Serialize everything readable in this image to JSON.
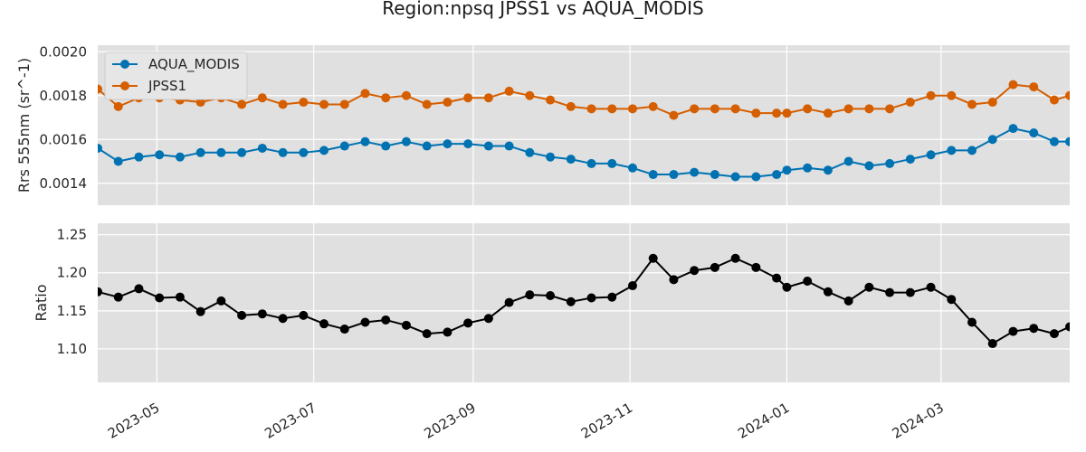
{
  "chart_data": {
    "title": "Region:npsq JPSS1 vs AQUA_MODIS",
    "x_tick_labels": [
      "2023-05",
      "2023-07",
      "2023-09",
      "2023-11",
      "2024-01",
      "2024-03"
    ],
    "x_tick_dates": [
      "2023-05-01",
      "2023-07-01",
      "2023-09-01",
      "2023-11-01",
      "2024-01-01",
      "2024-03-01"
    ],
    "xlim": [
      "2023-04-08",
      "2024-04-20"
    ],
    "x": [
      "2023-04-08",
      "2023-04-16",
      "2023-04-24",
      "2023-05-02",
      "2023-05-10",
      "2023-05-18",
      "2023-05-26",
      "2023-06-03",
      "2023-06-11",
      "2023-06-19",
      "2023-06-27",
      "2023-07-05",
      "2023-07-13",
      "2023-07-21",
      "2023-07-29",
      "2023-08-06",
      "2023-08-14",
      "2023-08-22",
      "2023-08-30",
      "2023-09-07",
      "2023-09-15",
      "2023-09-23",
      "2023-10-01",
      "2023-10-09",
      "2023-10-17",
      "2023-10-25",
      "2023-11-02",
      "2023-11-10",
      "2023-11-18",
      "2023-11-26",
      "2023-12-04",
      "2023-12-12",
      "2023-12-20",
      "2023-12-28",
      "2024-01-01",
      "2024-01-09",
      "2024-01-17",
      "2024-01-25",
      "2024-02-02",
      "2024-02-10",
      "2024-02-18",
      "2024-02-26",
      "2024-03-05",
      "2024-03-13",
      "2024-03-21",
      "2024-03-29",
      "2024-04-06",
      "2024-04-14",
      "2024-04-20"
    ],
    "panels": [
      {
        "type": "line",
        "ylabel": "Rrs 555nm (sr^-1)",
        "ylim": [
          0.0013,
          0.00203
        ],
        "y_ticks": [
          0.0014,
          0.0016,
          0.0018,
          0.002
        ],
        "y_tick_labels": [
          "0.0014",
          "0.0016",
          "0.0018",
          "0.0020"
        ],
        "grid": true,
        "legend": "top-left",
        "series": [
          {
            "name": "AQUA_MODIS",
            "color": "#0072b2",
            "values": [
              0.00156,
              0.0015,
              0.00152,
              0.00153,
              0.00152,
              0.00154,
              0.00154,
              0.00154,
              0.00156,
              0.00154,
              0.00154,
              0.00155,
              0.00157,
              0.00159,
              0.00157,
              0.00159,
              0.00157,
              0.00158,
              0.00158,
              0.00157,
              0.00157,
              0.00154,
              0.00152,
              0.00151,
              0.00149,
              0.00149,
              0.00147,
              0.00144,
              0.00144,
              0.00145,
              0.00144,
              0.00143,
              0.00143,
              0.00144,
              0.00146,
              0.00147,
              0.00146,
              0.0015,
              0.00148,
              0.00149,
              0.00151,
              0.00153,
              0.00155,
              0.00155,
              0.0016,
              0.00165,
              0.00163,
              0.00159,
              0.00159
            ]
          },
          {
            "name": "JPSS1",
            "color": "#d55e00",
            "values": [
              0.00183,
              0.00175,
              0.00179,
              0.00179,
              0.00178,
              0.00177,
              0.00179,
              0.00176,
              0.00179,
              0.00176,
              0.00177,
              0.00176,
              0.00176,
              0.00181,
              0.00179,
              0.0018,
              0.00176,
              0.00177,
              0.00179,
              0.00179,
              0.00182,
              0.0018,
              0.00178,
              0.00175,
              0.00174,
              0.00174,
              0.00174,
              0.00175,
              0.00171,
              0.00174,
              0.00174,
              0.00174,
              0.00172,
              0.00172,
              0.00172,
              0.00174,
              0.00172,
              0.00174,
              0.00174,
              0.00174,
              0.00177,
              0.0018,
              0.0018,
              0.00176,
              0.00177,
              0.00185,
              0.00184,
              0.00178,
              0.0018
            ]
          }
        ]
      },
      {
        "type": "line",
        "ylabel": "Ratio",
        "ylim": [
          1.056,
          1.265
        ],
        "y_ticks": [
          1.1,
          1.15,
          1.2,
          1.25
        ],
        "y_tick_labels": [
          "1.10",
          "1.15",
          "1.20",
          "1.25"
        ],
        "grid": true,
        "series": [
          {
            "color": "#000000",
            "values": [
              1.175,
              1.168,
              1.179,
              1.167,
              1.168,
              1.149,
              1.163,
              1.144,
              1.146,
              1.14,
              1.144,
              1.133,
              1.126,
              1.135,
              1.138,
              1.131,
              1.12,
              1.122,
              1.134,
              1.14,
              1.161,
              1.171,
              1.17,
              1.162,
              1.167,
              1.168,
              1.183,
              1.219,
              1.191,
              1.203,
              1.207,
              1.219,
              1.207,
              1.193,
              1.181,
              1.189,
              1.175,
              1.163,
              1.181,
              1.174,
              1.174,
              1.181,
              1.165,
              1.135,
              1.107,
              1.123,
              1.127,
              1.12,
              1.129
            ]
          }
        ]
      }
    ]
  }
}
